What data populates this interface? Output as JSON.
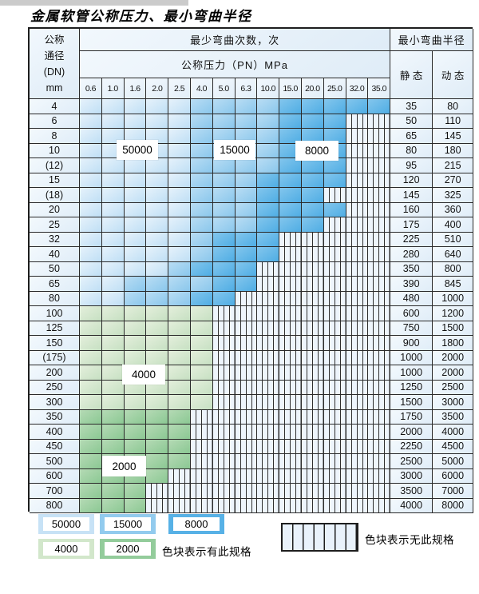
{
  "title": "金属软管公称压力、最小弯曲半径",
  "header": {
    "dn_lines": [
      "公称",
      "通径",
      "(DN)",
      "mm"
    ],
    "bend_cycles": "最少弯曲次数，次",
    "pressure_title": "公称压力（PN）MPa",
    "pressures": [
      "0.6",
      "1.0",
      "1.6",
      "2.0",
      "2.5",
      "4.0",
      "5.0",
      "6.3",
      "10.0",
      "15.0",
      "20.0",
      "25.0",
      "32.0",
      "35.0"
    ],
    "min_radius": "最小弯曲半径",
    "static": "静 态",
    "dynamic": "动 态"
  },
  "zone_values": {
    "b1": "50000",
    "b2": "15000",
    "b3": "8000",
    "g1": "4000",
    "g2": "2000",
    "x": "无此规格"
  },
  "zone_colors": {
    "b1": "#c7e2f6",
    "b2": "#92cbee",
    "b3": "#57b1e6",
    "g1": "#d2e7cb",
    "g2": "#93cc9b"
  },
  "overlays": {
    "v50000": "50000",
    "v15000": "15000",
    "v8000": "8000",
    "v4000": "4000",
    "v2000": "2000"
  },
  "rows": [
    {
      "dn": "4",
      "static": "35",
      "dynamic": "80",
      "zones": [
        "b1",
        "b1",
        "b1",
        "b1",
        "b1",
        "b2",
        "b2",
        "b2",
        "b2",
        "b3",
        "b3",
        "b3",
        "b3",
        "b3"
      ]
    },
    {
      "dn": "6",
      "static": "50",
      "dynamic": "110",
      "zones": [
        "b1",
        "b1",
        "b1",
        "b1",
        "b1",
        "b2",
        "b2",
        "b2",
        "b2",
        "b3",
        "b3",
        "b3",
        "x",
        "x"
      ]
    },
    {
      "dn": "8",
      "static": "65",
      "dynamic": "145",
      "zones": [
        "b1",
        "b1",
        "b1",
        "b1",
        "b1",
        "b2",
        "b2",
        "b2",
        "b2",
        "b3",
        "b3",
        "b3",
        "x",
        "x"
      ]
    },
    {
      "dn": "10",
      "static": "80",
      "dynamic": "180",
      "zones": [
        "b1",
        "b1",
        "b1",
        "b1",
        "b1",
        "b2",
        "b2",
        "b2",
        "b2",
        "b3",
        "b3",
        "b3",
        "x",
        "x"
      ]
    },
    {
      "dn": "(12)",
      "static": "95",
      "dynamic": "215",
      "zones": [
        "b1",
        "b1",
        "b1",
        "b1",
        "b1",
        "b2",
        "b2",
        "b2",
        "b2",
        "b3",
        "b3",
        "b3",
        "x",
        "x"
      ]
    },
    {
      "dn": "15",
      "static": "120",
      "dynamic": "270",
      "zones": [
        "b1",
        "b1",
        "b1",
        "b1",
        "b1",
        "b2",
        "b2",
        "b2",
        "b3",
        "b3",
        "b3",
        "b3",
        "x",
        "x"
      ]
    },
    {
      "dn": "(18)",
      "static": "145",
      "dynamic": "325",
      "zones": [
        "b1",
        "b1",
        "b1",
        "b1",
        "b1",
        "b2",
        "b2",
        "b2",
        "b3",
        "b3",
        "b3",
        "x",
        "x",
        "x"
      ]
    },
    {
      "dn": "20",
      "static": "160",
      "dynamic": "360",
      "zones": [
        "b1",
        "b1",
        "b1",
        "b1",
        "b1",
        "b2",
        "b2",
        "b2",
        "b3",
        "b3",
        "b3",
        "b3",
        "x",
        "x"
      ]
    },
    {
      "dn": "25",
      "static": "175",
      "dynamic": "400",
      "zones": [
        "b1",
        "b1",
        "b1",
        "b1",
        "b1",
        "b2",
        "b2",
        "b2",
        "b3",
        "b3",
        "b3",
        "x",
        "x",
        "x"
      ]
    },
    {
      "dn": "32",
      "static": "225",
      "dynamic": "510",
      "zones": [
        "b1",
        "b1",
        "b1",
        "b1",
        "b1",
        "b2",
        "b3",
        "b3",
        "b3",
        "x",
        "x",
        "x",
        "x",
        "x"
      ]
    },
    {
      "dn": "40",
      "static": "280",
      "dynamic": "640",
      "zones": [
        "b1",
        "b1",
        "b1",
        "b1",
        "b1",
        "b2",
        "b3",
        "b3",
        "b3",
        "x",
        "x",
        "x",
        "x",
        "x"
      ]
    },
    {
      "dn": "50",
      "static": "350",
      "dynamic": "800",
      "zones": [
        "b1",
        "b1",
        "b1",
        "b1",
        "b2",
        "b3",
        "b3",
        "b3",
        "x",
        "x",
        "x",
        "x",
        "x",
        "x"
      ]
    },
    {
      "dn": "65",
      "static": "390",
      "dynamic": "845",
      "zones": [
        "b1",
        "b1",
        "b2",
        "b2",
        "b2",
        "b2",
        "b3",
        "b3",
        "x",
        "x",
        "x",
        "x",
        "x",
        "x"
      ]
    },
    {
      "dn": "80",
      "static": "480",
      "dynamic": "1000",
      "zones": [
        "b1",
        "b1",
        "b2",
        "b2",
        "b2",
        "b3",
        "b3",
        "x",
        "x",
        "x",
        "x",
        "x",
        "x",
        "x"
      ]
    },
    {
      "dn": "100",
      "static": "600",
      "dynamic": "1200",
      "zones": [
        "g1",
        "g1",
        "g1",
        "g1",
        "g1",
        "g1",
        "x",
        "x",
        "x",
        "x",
        "x",
        "x",
        "x",
        "x"
      ]
    },
    {
      "dn": "125",
      "static": "750",
      "dynamic": "1500",
      "zones": [
        "g1",
        "g1",
        "g1",
        "g1",
        "g1",
        "g1",
        "x",
        "x",
        "x",
        "x",
        "x",
        "x",
        "x",
        "x"
      ]
    },
    {
      "dn": "150",
      "static": "900",
      "dynamic": "1800",
      "zones": [
        "g1",
        "g1",
        "g1",
        "g1",
        "g1",
        "g1",
        "x",
        "x",
        "x",
        "x",
        "x",
        "x",
        "x",
        "x"
      ]
    },
    {
      "dn": "(175)",
      "static": "1000",
      "dynamic": "2000",
      "zones": [
        "g1",
        "g1",
        "g1",
        "g1",
        "g1",
        "g1",
        "x",
        "x",
        "x",
        "x",
        "x",
        "x",
        "x",
        "x"
      ]
    },
    {
      "dn": "200",
      "static": "1000",
      "dynamic": "2000",
      "zones": [
        "g1",
        "g1",
        "g1",
        "g1",
        "g1",
        "g1",
        "x",
        "x",
        "x",
        "x",
        "x",
        "x",
        "x",
        "x"
      ]
    },
    {
      "dn": "250",
      "static": "1250",
      "dynamic": "2500",
      "zones": [
        "g1",
        "g1",
        "g1",
        "g1",
        "g1",
        "g1",
        "x",
        "x",
        "x",
        "x",
        "x",
        "x",
        "x",
        "x"
      ]
    },
    {
      "dn": "300",
      "static": "1500",
      "dynamic": "3000",
      "zones": [
        "g1",
        "g1",
        "g1",
        "g1",
        "g1",
        "g1",
        "x",
        "x",
        "x",
        "x",
        "x",
        "x",
        "x",
        "x"
      ]
    },
    {
      "dn": "350",
      "static": "1750",
      "dynamic": "3500",
      "zones": [
        "g2",
        "g2",
        "g2",
        "g2",
        "g2",
        "x",
        "x",
        "x",
        "x",
        "x",
        "x",
        "x",
        "x",
        "x"
      ]
    },
    {
      "dn": "400",
      "static": "2000",
      "dynamic": "4000",
      "zones": [
        "g2",
        "g2",
        "g2",
        "g2",
        "g2",
        "x",
        "x",
        "x",
        "x",
        "x",
        "x",
        "x",
        "x",
        "x"
      ]
    },
    {
      "dn": "450",
      "static": "2250",
      "dynamic": "4500",
      "zones": [
        "g2",
        "g2",
        "g2",
        "g2",
        "g2",
        "x",
        "x",
        "x",
        "x",
        "x",
        "x",
        "x",
        "x",
        "x"
      ]
    },
    {
      "dn": "500",
      "static": "2500",
      "dynamic": "5000",
      "zones": [
        "g2",
        "g2",
        "g2",
        "g2",
        "g2",
        "x",
        "x",
        "x",
        "x",
        "x",
        "x",
        "x",
        "x",
        "x"
      ]
    },
    {
      "dn": "600",
      "static": "3000",
      "dynamic": "6000",
      "zones": [
        "g2",
        "g2",
        "g2",
        "g2",
        "x",
        "x",
        "x",
        "x",
        "x",
        "x",
        "x",
        "x",
        "x",
        "x"
      ]
    },
    {
      "dn": "700",
      "static": "3500",
      "dynamic": "7000",
      "zones": [
        "g2",
        "g2",
        "g2",
        "x",
        "x",
        "x",
        "x",
        "x",
        "x",
        "x",
        "x",
        "x",
        "x",
        "x"
      ]
    },
    {
      "dn": "800",
      "static": "4000",
      "dynamic": "8000",
      "zones": [
        "g2",
        "g2",
        "g2",
        "x",
        "x",
        "x",
        "x",
        "x",
        "x",
        "x",
        "x",
        "x",
        "x",
        "x"
      ]
    }
  ],
  "legend": {
    "items": [
      {
        "label": "50000",
        "zone": "b1"
      },
      {
        "label": "15000",
        "zone": "b2"
      },
      {
        "label": "8000",
        "zone": "b3"
      },
      {
        "label": "4000",
        "zone": "g1"
      },
      {
        "label": "2000",
        "zone": "g2"
      }
    ],
    "has_spec": "色块表示有此规格",
    "no_spec": "色块表示无此规格"
  }
}
